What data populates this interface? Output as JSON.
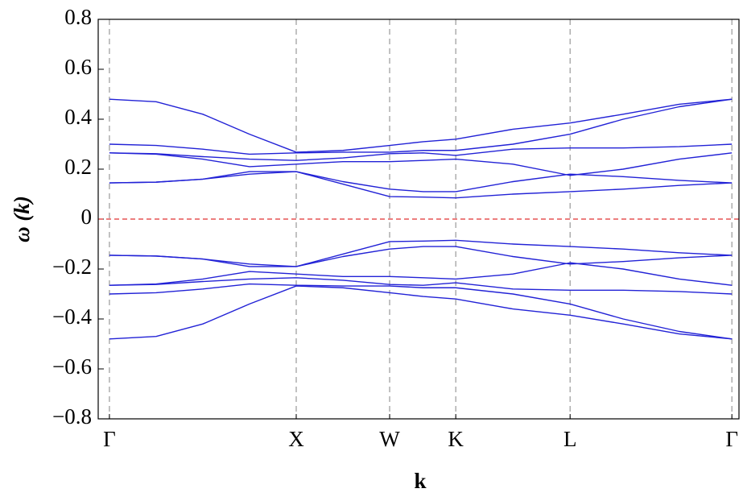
{
  "chart_data": {
    "type": "line",
    "xlabel": "k",
    "ylabel": "ω (k)",
    "x": [
      0,
      0.25,
      0.5,
      0.75,
      1,
      1.25,
      1.5,
      1.68,
      1.854,
      2.16,
      2.466,
      2.75,
      3.05,
      3.332
    ],
    "color": "#2222d6",
    "reference_line": {
      "value": 0,
      "color": "#e03030"
    },
    "xlim": [
      -0.06,
      3.37
    ],
    "ylim": [
      -0.8,
      0.8
    ],
    "xticks": [
      {
        "value": 0,
        "label": "Γ"
      },
      {
        "value": 1,
        "label": "X"
      },
      {
        "value": 1.5,
        "label": "W"
      },
      {
        "value": 1.854,
        "label": "K"
      },
      {
        "value": 2.466,
        "label": "L"
      },
      {
        "value": 3.332,
        "label": "Γ"
      }
    ],
    "yticks": [
      {
        "value": -0.8,
        "label": "−0.8"
      },
      {
        "value": -0.6,
        "label": "−0.6"
      },
      {
        "value": -0.4,
        "label": "−0.4"
      },
      {
        "value": -0.2,
        "label": "−0.2"
      },
      0,
      0.2,
      0.4,
      0.6,
      0.8
    ],
    "grid": true,
    "series": [
      {
        "values": [
          0.48,
          0.47,
          0.42,
          0.34,
          0.268,
          0.275,
          0.295,
          0.31,
          0.32,
          0.36,
          0.385,
          0.42,
          0.46,
          0.48
        ]
      },
      {
        "values": [
          0.3,
          0.295,
          0.28,
          0.26,
          0.265,
          0.268,
          0.268,
          0.275,
          0.275,
          0.3,
          0.34,
          0.4,
          0.45,
          0.48
        ]
      },
      {
        "values": [
          0.265,
          0.262,
          0.25,
          0.24,
          0.235,
          0.245,
          0.262,
          0.265,
          0.255,
          0.28,
          0.285,
          0.285,
          0.29,
          0.3
        ]
      },
      {
        "values": [
          0.265,
          0.26,
          0.24,
          0.21,
          0.22,
          0.23,
          0.23,
          0.235,
          0.24,
          0.22,
          0.175,
          0.2,
          0.24,
          0.265
        ]
      },
      {
        "values": [
          0.145,
          0.148,
          0.16,
          0.19,
          0.19,
          0.15,
          0.12,
          0.11,
          0.11,
          0.15,
          0.18,
          0.17,
          0.155,
          0.145
        ]
      },
      {
        "values": [
          0.145,
          0.148,
          0.16,
          0.18,
          0.19,
          0.14,
          0.09,
          0.088,
          0.085,
          0.1,
          0.11,
          0.12,
          0.135,
          0.145
        ]
      },
      {
        "values": [
          -0.48,
          -0.47,
          -0.42,
          -0.34,
          -0.268,
          -0.275,
          -0.295,
          -0.31,
          -0.32,
          -0.36,
          -0.385,
          -0.42,
          -0.46,
          -0.48
        ]
      },
      {
        "values": [
          -0.3,
          -0.295,
          -0.28,
          -0.26,
          -0.265,
          -0.268,
          -0.268,
          -0.275,
          -0.275,
          -0.3,
          -0.34,
          -0.4,
          -0.45,
          -0.48
        ]
      },
      {
        "values": [
          -0.265,
          -0.262,
          -0.25,
          -0.24,
          -0.235,
          -0.245,
          -0.262,
          -0.265,
          -0.255,
          -0.28,
          -0.285,
          -0.285,
          -0.29,
          -0.3
        ]
      },
      {
        "values": [
          -0.265,
          -0.26,
          -0.24,
          -0.21,
          -0.22,
          -0.23,
          -0.23,
          -0.235,
          -0.24,
          -0.22,
          -0.175,
          -0.2,
          -0.24,
          -0.265
        ]
      },
      {
        "values": [
          -0.145,
          -0.148,
          -0.16,
          -0.19,
          -0.19,
          -0.15,
          -0.12,
          -0.11,
          -0.11,
          -0.15,
          -0.18,
          -0.17,
          -0.155,
          -0.145
        ]
      },
      {
        "values": [
          -0.145,
          -0.148,
          -0.16,
          -0.18,
          -0.19,
          -0.14,
          -0.09,
          -0.088,
          -0.085,
          -0.1,
          -0.11,
          -0.12,
          -0.135,
          -0.145
        ]
      }
    ]
  }
}
